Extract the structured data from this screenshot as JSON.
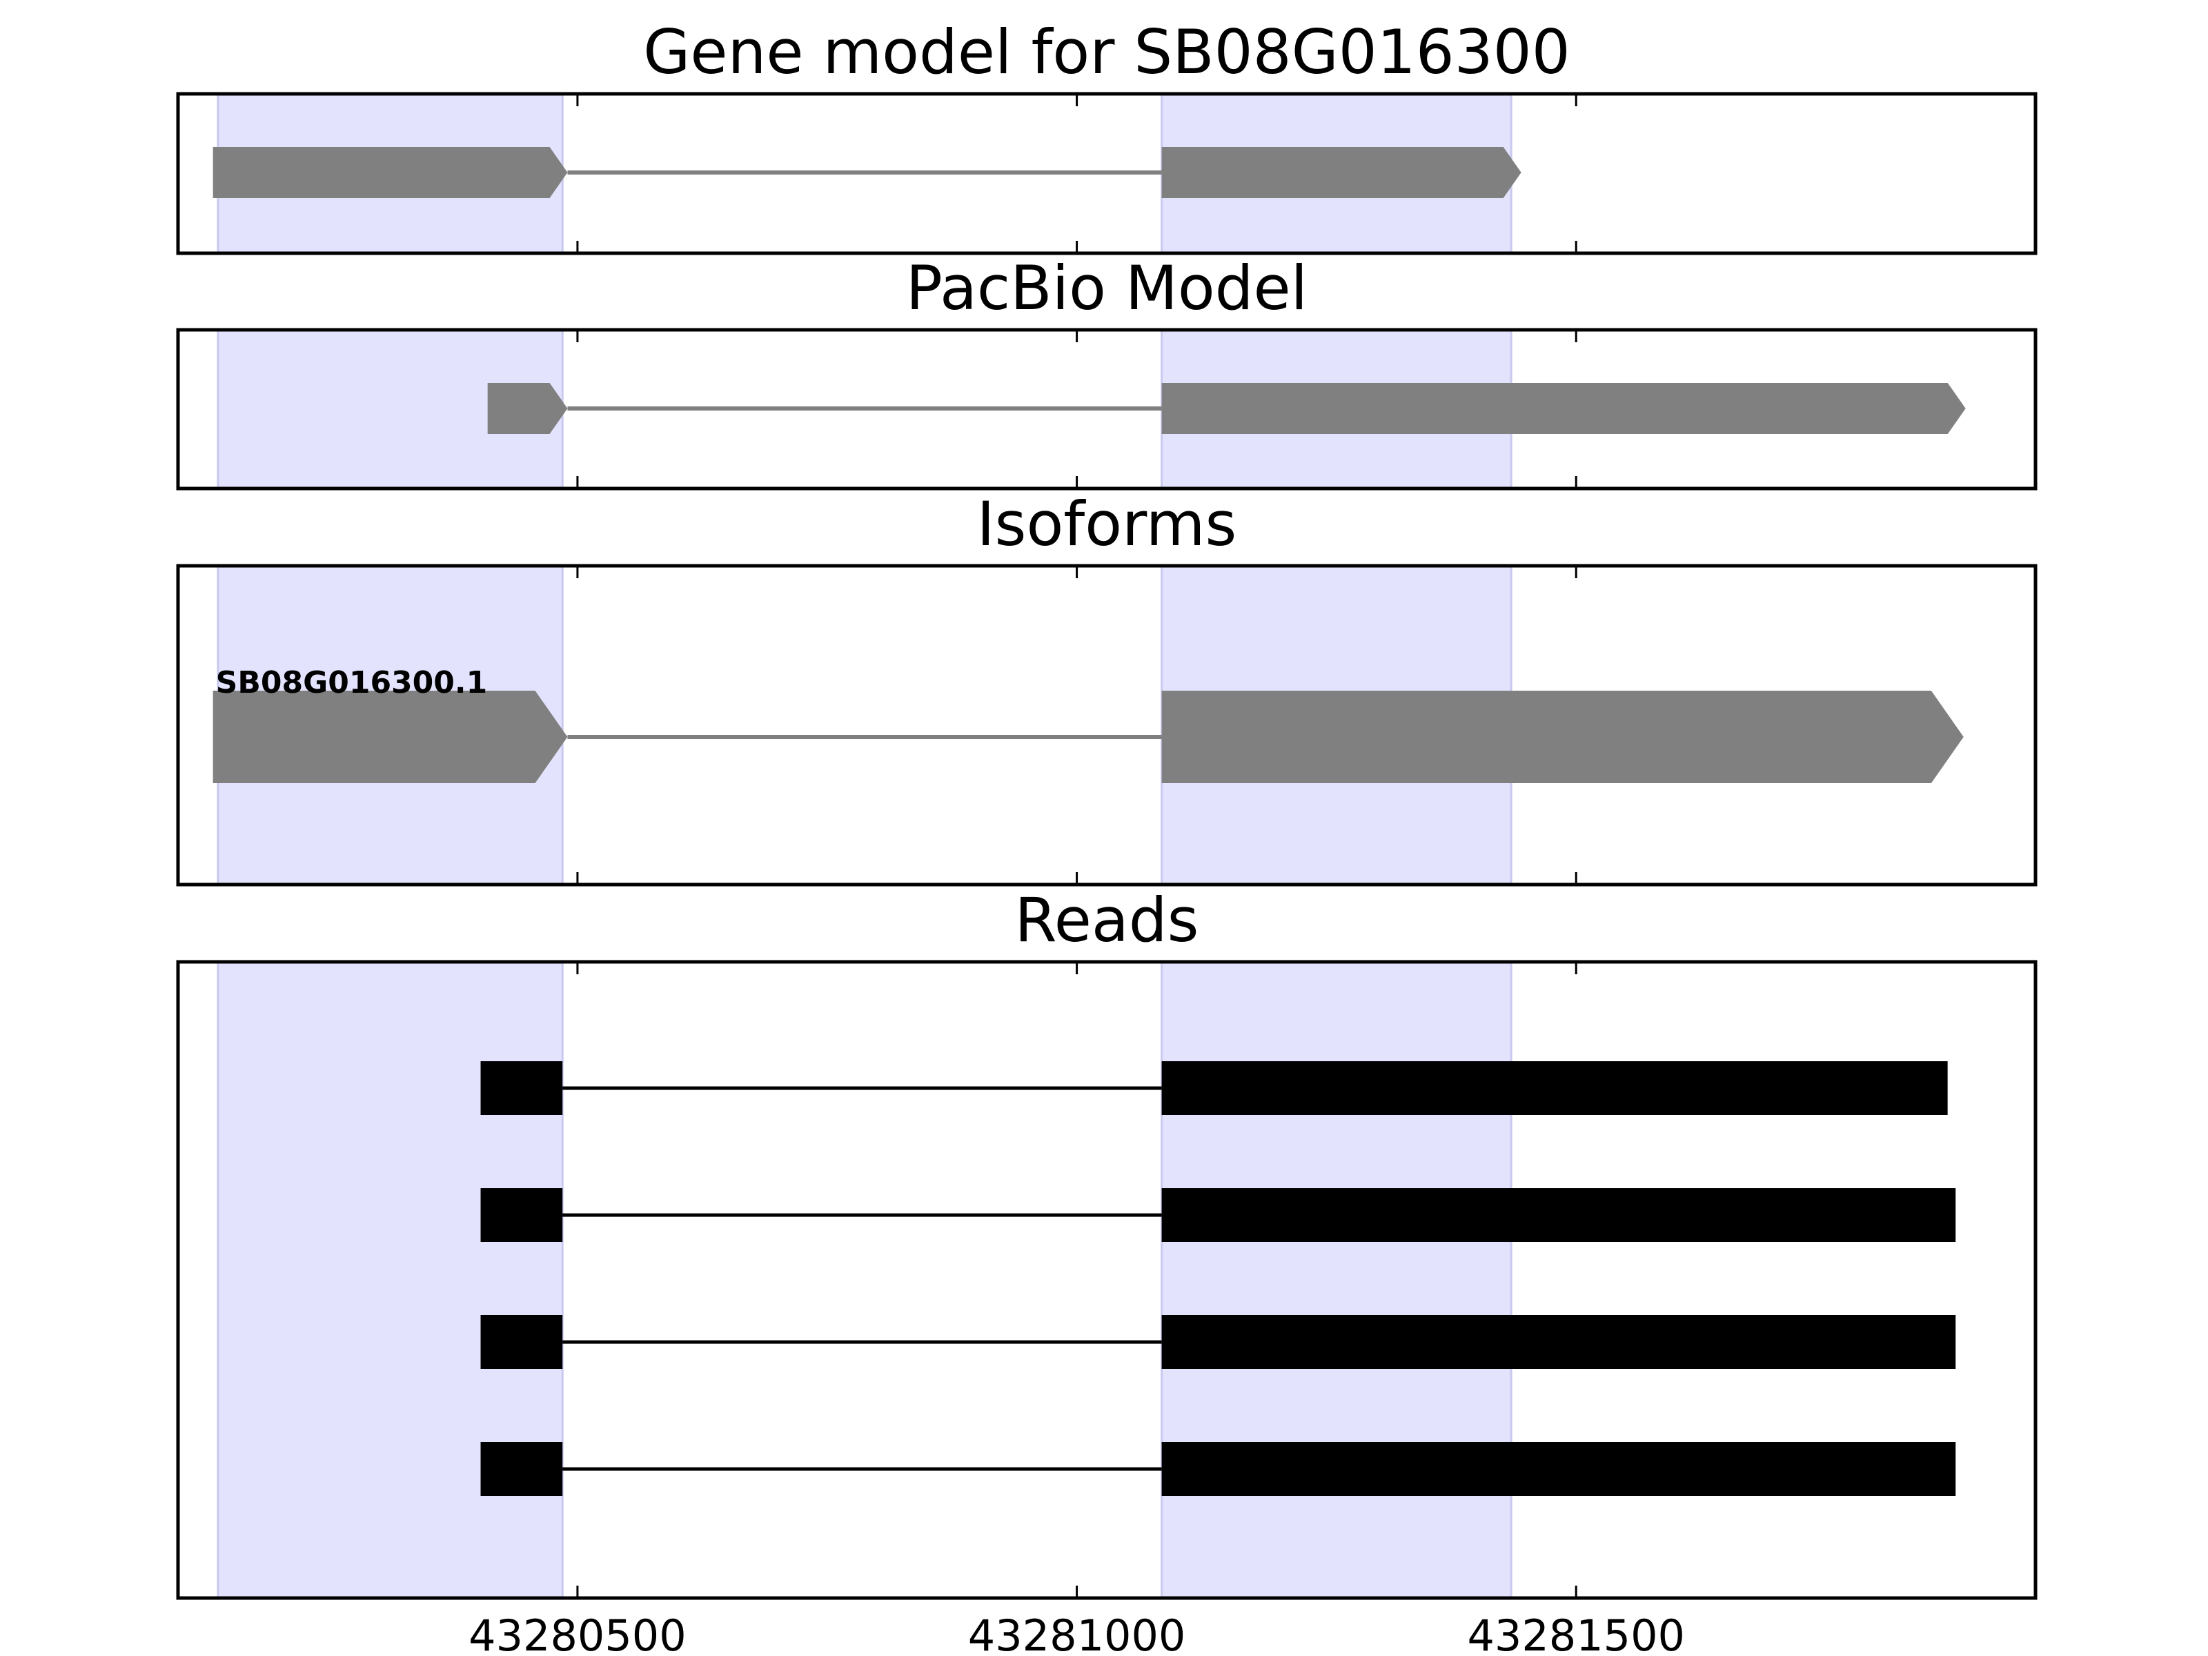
{
  "chart_data": {
    "type": "gene-model",
    "x_ticks": [
      43280500,
      43281000,
      43281500
    ],
    "xlim": [
      43280100,
      43281960
    ],
    "highlight_color": "#e3e3fd",
    "shaded_regions": [
      [
        43280140,
        43280485
      ],
      [
        43281085,
        43281435
      ]
    ],
    "panels": [
      {
        "title": "Gene model for SB08G016300",
        "shape": "arrow",
        "color": "#808080",
        "tracks": [
          {
            "label": "",
            "exons": [
              [
                43280135,
                43280490
              ],
              [
                43281085,
                43281445
              ]
            ]
          }
        ]
      },
      {
        "title": "PacBio Model",
        "shape": "arrow",
        "color": "#808080",
        "tracks": [
          {
            "label": "",
            "exons": [
              [
                43280410,
                43280490
              ],
              [
                43281085,
                43281890
              ]
            ]
          }
        ]
      },
      {
        "title": "Isoforms",
        "shape": "arrow",
        "color": "#808080",
        "tracks": [
          {
            "label": "SB08G016300.1",
            "exons": [
              [
                43280135,
                43280490
              ],
              [
                43281085,
                43281888
              ]
            ]
          }
        ]
      },
      {
        "title": "Reads",
        "shape": "box",
        "color": "#000000",
        "tracks": [
          {
            "label": "",
            "exons": [
              [
                43280403,
                43280485
              ],
              [
                43281085,
                43281872
              ]
            ]
          },
          {
            "label": "",
            "exons": [
              [
                43280403,
                43280485
              ],
              [
                43281085,
                43281880
              ]
            ]
          },
          {
            "label": "",
            "exons": [
              [
                43280403,
                43280485
              ],
              [
                43281085,
                43281880
              ]
            ]
          },
          {
            "label": "",
            "exons": [
              [
                43280403,
                43280485
              ],
              [
                43281085,
                43281880
              ]
            ]
          }
        ]
      }
    ]
  }
}
